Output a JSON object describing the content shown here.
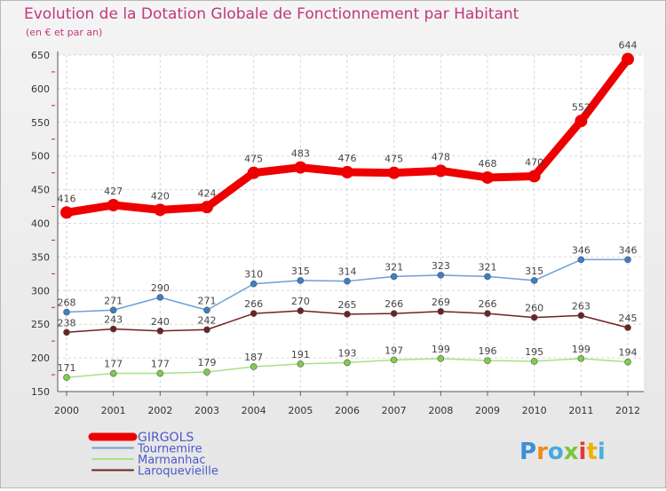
{
  "chart_data": {
    "type": "line",
    "title": "Evolution de la Dotation Globale de Fonctionnement par Habitant",
    "subtitle": "(en € et par an)",
    "x": [
      "2000",
      "2001",
      "2002",
      "2003",
      "2004",
      "2005",
      "2006",
      "2007",
      "2008",
      "2009",
      "2010",
      "2011",
      "2012"
    ],
    "ylim": [
      150,
      650
    ],
    "yticks": [
      150,
      200,
      250,
      300,
      350,
      400,
      450,
      500,
      550,
      600,
      650
    ],
    "grid": true,
    "legend_position": "bottom-left",
    "series": [
      {
        "name": "GIRGOLS",
        "color": "#ee0000",
        "marker_color": "#ee0000",
        "values": [
          416,
          427,
          420,
          424,
          475,
          483,
          476,
          475,
          478,
          468,
          470,
          552,
          644
        ]
      },
      {
        "name": "Tournemire",
        "color": "#6fa0d0",
        "marker_color": "#3a80c8",
        "values": [
          268,
          271,
          290,
          271,
          310,
          315,
          314,
          321,
          323,
          321,
          315,
          346,
          346
        ]
      },
      {
        "name": "Marmanhac",
        "color": "#a8e088",
        "marker_color": "#7cd048",
        "values": [
          171,
          177,
          177,
          179,
          187,
          191,
          193,
          197,
          199,
          196,
          195,
          199,
          194
        ]
      },
      {
        "name": "Laroquevieille",
        "color": "#6e2222",
        "marker_color": "#6e2222",
        "values": [
          238,
          243,
          240,
          242,
          266,
          270,
          265,
          266,
          269,
          266,
          260,
          263,
          245
        ]
      }
    ]
  },
  "logo": {
    "text": "Proxiti"
  }
}
